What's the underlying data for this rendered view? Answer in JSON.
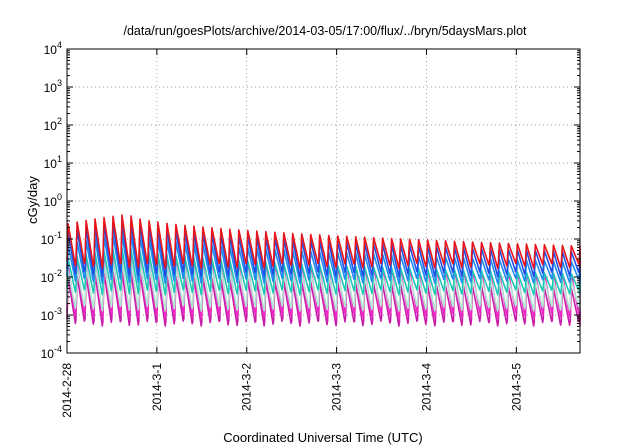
{
  "chart_data": {
    "type": "line",
    "title": "/data/run/goesPlots/archive/2014-03-05/17:00/flux/../bryn/5daysMars.plot",
    "xlabel": "Coordinated Universal Time (UTC)",
    "ylabel": "cGy/day",
    "yscale": "log",
    "ylim": [
      0.0001,
      10000
    ],
    "y_ticks": [
      {
        "base": "10",
        "exp": "-4"
      },
      {
        "base": "10",
        "exp": "-3"
      },
      {
        "base": "10",
        "exp": "-2"
      },
      {
        "base": "10",
        "exp": "-1"
      },
      {
        "base": "10",
        "exp": "0"
      },
      {
        "base": "10",
        "exp": "1"
      },
      {
        "base": "10",
        "exp": "2"
      },
      {
        "base": "10",
        "exp": "3"
      },
      {
        "base": "10",
        "exp": "4"
      }
    ],
    "xlim": [
      "2014-02-28 00:00",
      "2014-03-05 17:00"
    ],
    "x_ticks": [
      "2014-2-28",
      "2014-3-1",
      "2014-3-2",
      "2014-3-3",
      "2014-3-4",
      "2014-3-5"
    ],
    "grid": true,
    "legend": "none",
    "period_hours": 2.4,
    "series": [
      {
        "color": "#e8141c",
        "peak_start": 0.25,
        "peak_max": 0.45,
        "peak_end": 0.065,
        "trough": 0.02
      },
      {
        "color": "#1e50e6",
        "peak_start": 0.15,
        "peak_max": 0.3,
        "peak_end": 0.045,
        "trough": 0.012
      },
      {
        "color": "#1e8cf0",
        "peak_start": 0.07,
        "peak_max": 0.15,
        "peak_end": 0.025,
        "trough": 0.008
      },
      {
        "color": "#1ec8b4",
        "peak_start": 0.03,
        "peak_max": 0.06,
        "peak_end": 0.012,
        "trough": 0.004
      },
      {
        "color": "#b4e6d2",
        "peak_start": 0.015,
        "peak_max": 0.03,
        "peak_end": 0.008,
        "trough": 0.0015
      },
      {
        "color": "#f028c8",
        "peak_start": 0.02,
        "peak_max": 0.035,
        "peak_end": 0.012,
        "trough": 0.001
      },
      {
        "color": "#c81eaa",
        "peak_start": 0.01,
        "peak_max": 0.015,
        "peak_end": 0.005,
        "trough": 0.0006
      }
    ]
  }
}
